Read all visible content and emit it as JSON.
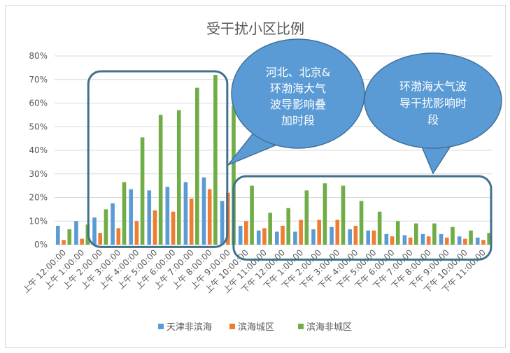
{
  "chart_data": {
    "type": "bar",
    "title": "受干扰小区比例",
    "xlabel": "",
    "ylabel": "",
    "ylim": [
      0,
      0.8
    ],
    "yticks": [
      "0%",
      "10%",
      "20%",
      "30%",
      "40%",
      "50%",
      "60%",
      "70%",
      "80%"
    ],
    "grid": true,
    "legend_position": "bottom",
    "categories": [
      "上午 12:00:00",
      "上午 1:00:00",
      "上午 2:00:00",
      "上午 3:00:00",
      "上午 4:00:00",
      "上午 5:00:00",
      "上午 6:00:00",
      "上午 7:00:00",
      "上午 8:00:00",
      "上午 9:00:00",
      "上午 10:00:00",
      "上午 11:00:00",
      "下午 12:00:00",
      "下午 1:00:00",
      "下午 2:00:00",
      "下午 3:00:00",
      "下午 4:00:00",
      "下午 5:00:00",
      "下午 6:00:00",
      "下午 7:00:00",
      "下午 8:00:00",
      "下午 9:00:00",
      "下午 10:00:00",
      "下午 11:00:00"
    ],
    "series": [
      {
        "name": "天津非滨海",
        "color": "#5b9bd5",
        "values": [
          0.08,
          0.1,
          0.115,
          0.175,
          0.235,
          0.23,
          0.245,
          0.265,
          0.285,
          0.185,
          0.08,
          0.06,
          0.055,
          0.055,
          0.065,
          0.075,
          0.065,
          0.06,
          0.045,
          0.04,
          0.045,
          0.045,
          0.035,
          0.03
        ]
      },
      {
        "name": "滨海城区",
        "color": "#ed7d31",
        "values": [
          0.02,
          0.025,
          0.05,
          0.07,
          0.1,
          0.145,
          0.14,
          0.195,
          0.235,
          0.22,
          0.1,
          0.07,
          0.08,
          0.105,
          0.105,
          0.105,
          0.08,
          0.06,
          0.035,
          0.03,
          0.035,
          0.03,
          0.025,
          0.02
        ]
      },
      {
        "name": "滨海非城区",
        "color": "#70ad47",
        "values": [
          0.065,
          0.085,
          0.15,
          0.265,
          0.455,
          0.55,
          0.57,
          0.665,
          0.72,
          0.59,
          0.25,
          0.135,
          0.155,
          0.23,
          0.26,
          0.25,
          0.185,
          0.14,
          0.1,
          0.09,
          0.09,
          0.075,
          0.06,
          0.05
        ]
      }
    ],
    "annotations": [
      {
        "kind": "highlight-box",
        "from_category": 3,
        "to_category": 9,
        "y_top": 0.735,
        "y_bottom": -0.01
      },
      {
        "kind": "highlight-box",
        "from_category": 10,
        "to_category": 23,
        "y_top": 0.29,
        "y_bottom": -0.01
      },
      {
        "kind": "callout",
        "lines": [
          "河北、北京&",
          "环渤海大气",
          "波导影响叠",
          "加时段"
        ]
      },
      {
        "kind": "callout",
        "lines": [
          "环渤海大气波",
          "导干扰影响时",
          "段"
        ]
      }
    ],
    "callout_color": "#5b9bd5",
    "box_color": "#41718c"
  }
}
